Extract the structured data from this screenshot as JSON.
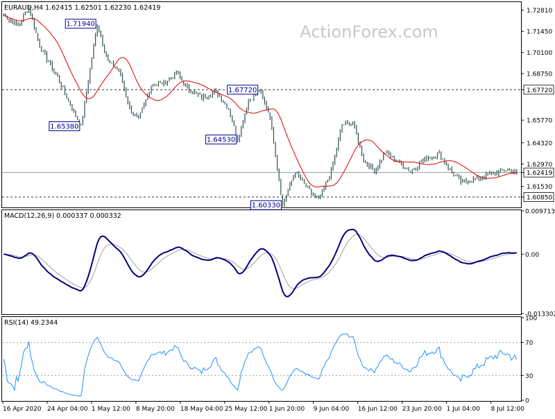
{
  "colors": {
    "background": "#ffffff",
    "frame": "#000000",
    "bars": "#2f4f4f",
    "sma": "#e00000",
    "macd_line": "#00007a",
    "macd_signal": "#a0a0a0",
    "rsi_line": "#1e90ff",
    "hline": "#555555",
    "box_border": "#00008b",
    "watermark": "#c8c8c8"
  },
  "watermark": "ActionForex.com",
  "chart_data": [
    {
      "type": "candlestick",
      "panel": "price",
      "title": "EURAUD,H4  1.62415 1.62501 1.62230 1.62419",
      "ylim": [
        1.6023,
        1.7328
      ],
      "y_ticks": [
        "1.72810",
        "1.71450",
        "1.70100",
        "1.68750",
        "1.67720",
        "1.65770",
        "1.64320",
        "1.62970",
        "1.62419",
        "1.61530",
        "1.60850"
      ],
      "current_price": "1.62419",
      "horizontal_lines": [
        1.6772,
        1.62419,
        1.6085
      ],
      "x_labels": [
        "16 Apr 2020",
        "24 Apr 04:00",
        "1 May 12:00",
        "8 May 20:00",
        "18 May 04:00",
        "25 May 12:00",
        "1 Jun 20:00",
        "9 Jun 04:00",
        "16 Jun 12:00",
        "23 Jun 20:00",
        "1 Jul 04:00",
        "8 Jul 12:00"
      ],
      "annotations": [
        {
          "label": "1.71940",
          "value": 1.7194,
          "bar": 52
        },
        {
          "label": "1.65380",
          "value": 1.6538,
          "bar": 43
        },
        {
          "label": "1.67720",
          "value": 1.6772,
          "bar": 142
        },
        {
          "label": "1.64530",
          "value": 1.6453,
          "bar": 130
        },
        {
          "label": "1.60330",
          "value": 1.6033,
          "bar": 155
        }
      ],
      "key_points": [
        [
          0,
          1.725
        ],
        [
          8,
          1.718
        ],
        [
          14,
          1.73
        ],
        [
          20,
          1.705
        ],
        [
          30,
          1.685
        ],
        [
          36,
          1.67
        ],
        [
          43,
          1.6538
        ],
        [
          52,
          1.7194
        ],
        [
          58,
          1.695
        ],
        [
          64,
          1.69
        ],
        [
          70,
          1.665
        ],
        [
          75,
          1.658
        ],
        [
          82,
          1.68
        ],
        [
          90,
          1.682
        ],
        [
          96,
          1.688
        ],
        [
          102,
          1.678
        ],
        [
          110,
          1.672
        ],
        [
          118,
          1.676
        ],
        [
          125,
          1.665
        ],
        [
          130,
          1.6453
        ],
        [
          136,
          1.67
        ],
        [
          142,
          1.6772
        ],
        [
          148,
          1.66
        ],
        [
          155,
          1.6033
        ],
        [
          162,
          1.625
        ],
        [
          168,
          1.615
        ],
        [
          175,
          1.606
        ],
        [
          182,
          1.625
        ],
        [
          188,
          1.655
        ],
        [
          194,
          1.656
        ],
        [
          200,
          1.632
        ],
        [
          206,
          1.625
        ],
        [
          212,
          1.637
        ],
        [
          218,
          1.632
        ],
        [
          226,
          1.625
        ],
        [
          234,
          1.633
        ],
        [
          242,
          1.636
        ],
        [
          248,
          1.626
        ],
        [
          254,
          1.618
        ],
        [
          262,
          1.62
        ],
        [
          270,
          1.623
        ],
        [
          278,
          1.626
        ],
        [
          285,
          1.6242
        ]
      ],
      "bar_count": 286,
      "sma_period": 20
    },
    {
      "type": "line",
      "panel": "macd",
      "title": "MACD(12,26,9) 0.000337 0.000332",
      "ylim": [
        -0.0133,
        0.0097
      ],
      "y_ticks": [
        "0.009713",
        "0.00",
        "-0.013302"
      ],
      "series": [
        {
          "name": "MACD",
          "role": "main"
        },
        {
          "name": "Signal",
          "role": "signal"
        }
      ]
    },
    {
      "type": "line",
      "panel": "rsi",
      "title": "RSI(14) 49.2344",
      "ylim": [
        0,
        100
      ],
      "y_ticks": [
        "100",
        "70",
        "30",
        "0"
      ],
      "levels": [
        70,
        30
      ],
      "series": [
        {
          "name": "RSI",
          "period": 14
        }
      ]
    }
  ]
}
